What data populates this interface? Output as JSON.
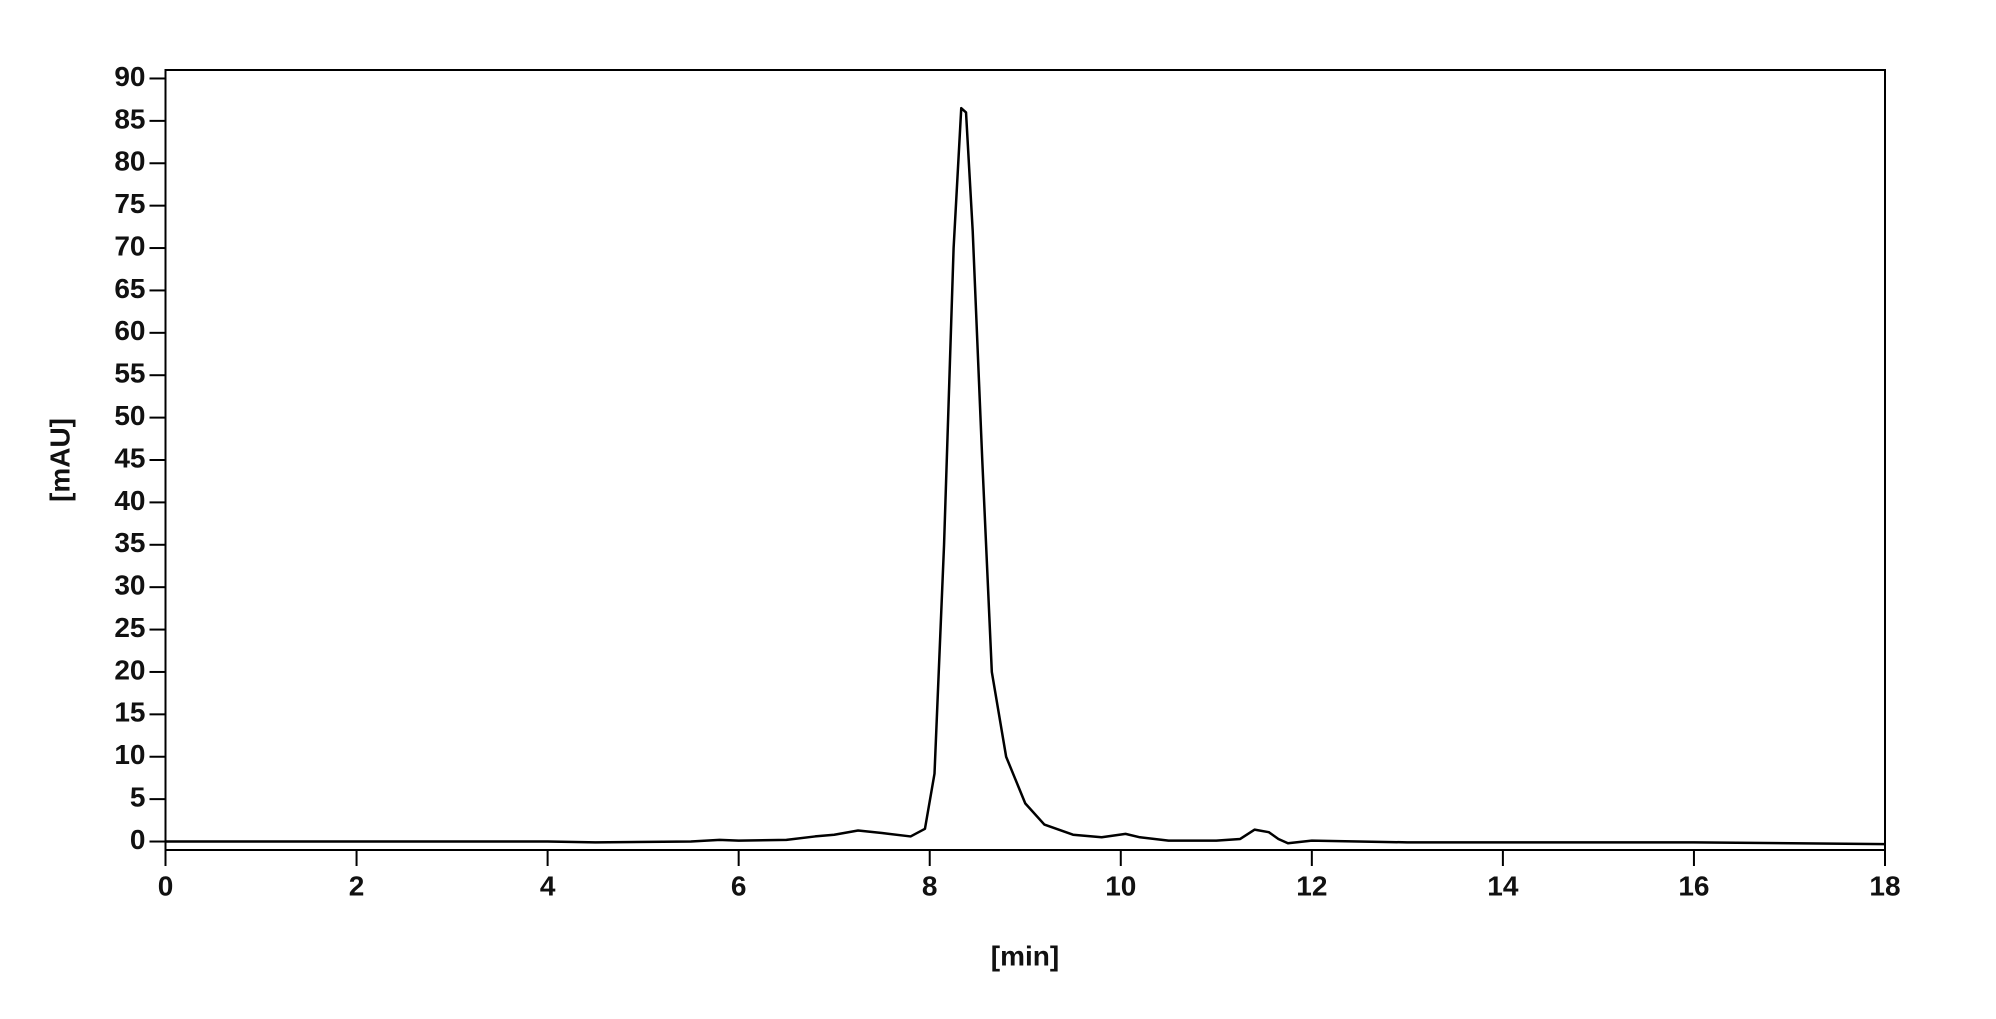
{
  "chart_data": {
    "type": "line",
    "xlabel": "[min]",
    "ylabel": "[mAU]",
    "xlim": [
      0,
      18
    ],
    "xticks": [
      0,
      2,
      4,
      6,
      8,
      10,
      12,
      14,
      16,
      18
    ],
    "ylim": [
      -1,
      91
    ],
    "yticks": [
      0,
      5,
      10,
      15,
      20,
      25,
      30,
      35,
      40,
      45,
      50,
      55,
      60,
      65,
      70,
      75,
      80,
      85,
      90
    ],
    "color": "#000000",
    "x": [
      0,
      2,
      4,
      4.5,
      5.5,
      5.8,
      6,
      6.5,
      6.8,
      7,
      7.25,
      7.5,
      7.8,
      7.95,
      8.05,
      8.15,
      8.25,
      8.33,
      8.38,
      8.45,
      8.55,
      8.65,
      8.8,
      9.0,
      9.2,
      9.5,
      9.8,
      10.05,
      10.2,
      10.5,
      11.0,
      11.25,
      11.4,
      11.55,
      11.65,
      11.75,
      12,
      13,
      16,
      18
    ],
    "values": [
      0,
      0,
      0,
      -0.1,
      0,
      0.2,
      0.1,
      0.2,
      0.6,
      0.8,
      1.3,
      1.0,
      0.6,
      1.5,
      8,
      35,
      70,
      86.5,
      86,
      72,
      45,
      20,
      10,
      4.5,
      2,
      0.8,
      0.5,
      0.9,
      0.5,
      0.1,
      0.1,
      0.3,
      1.4,
      1.1,
      0.3,
      -0.2,
      0.1,
      -0.1,
      -0.1,
      -0.3
    ]
  }
}
